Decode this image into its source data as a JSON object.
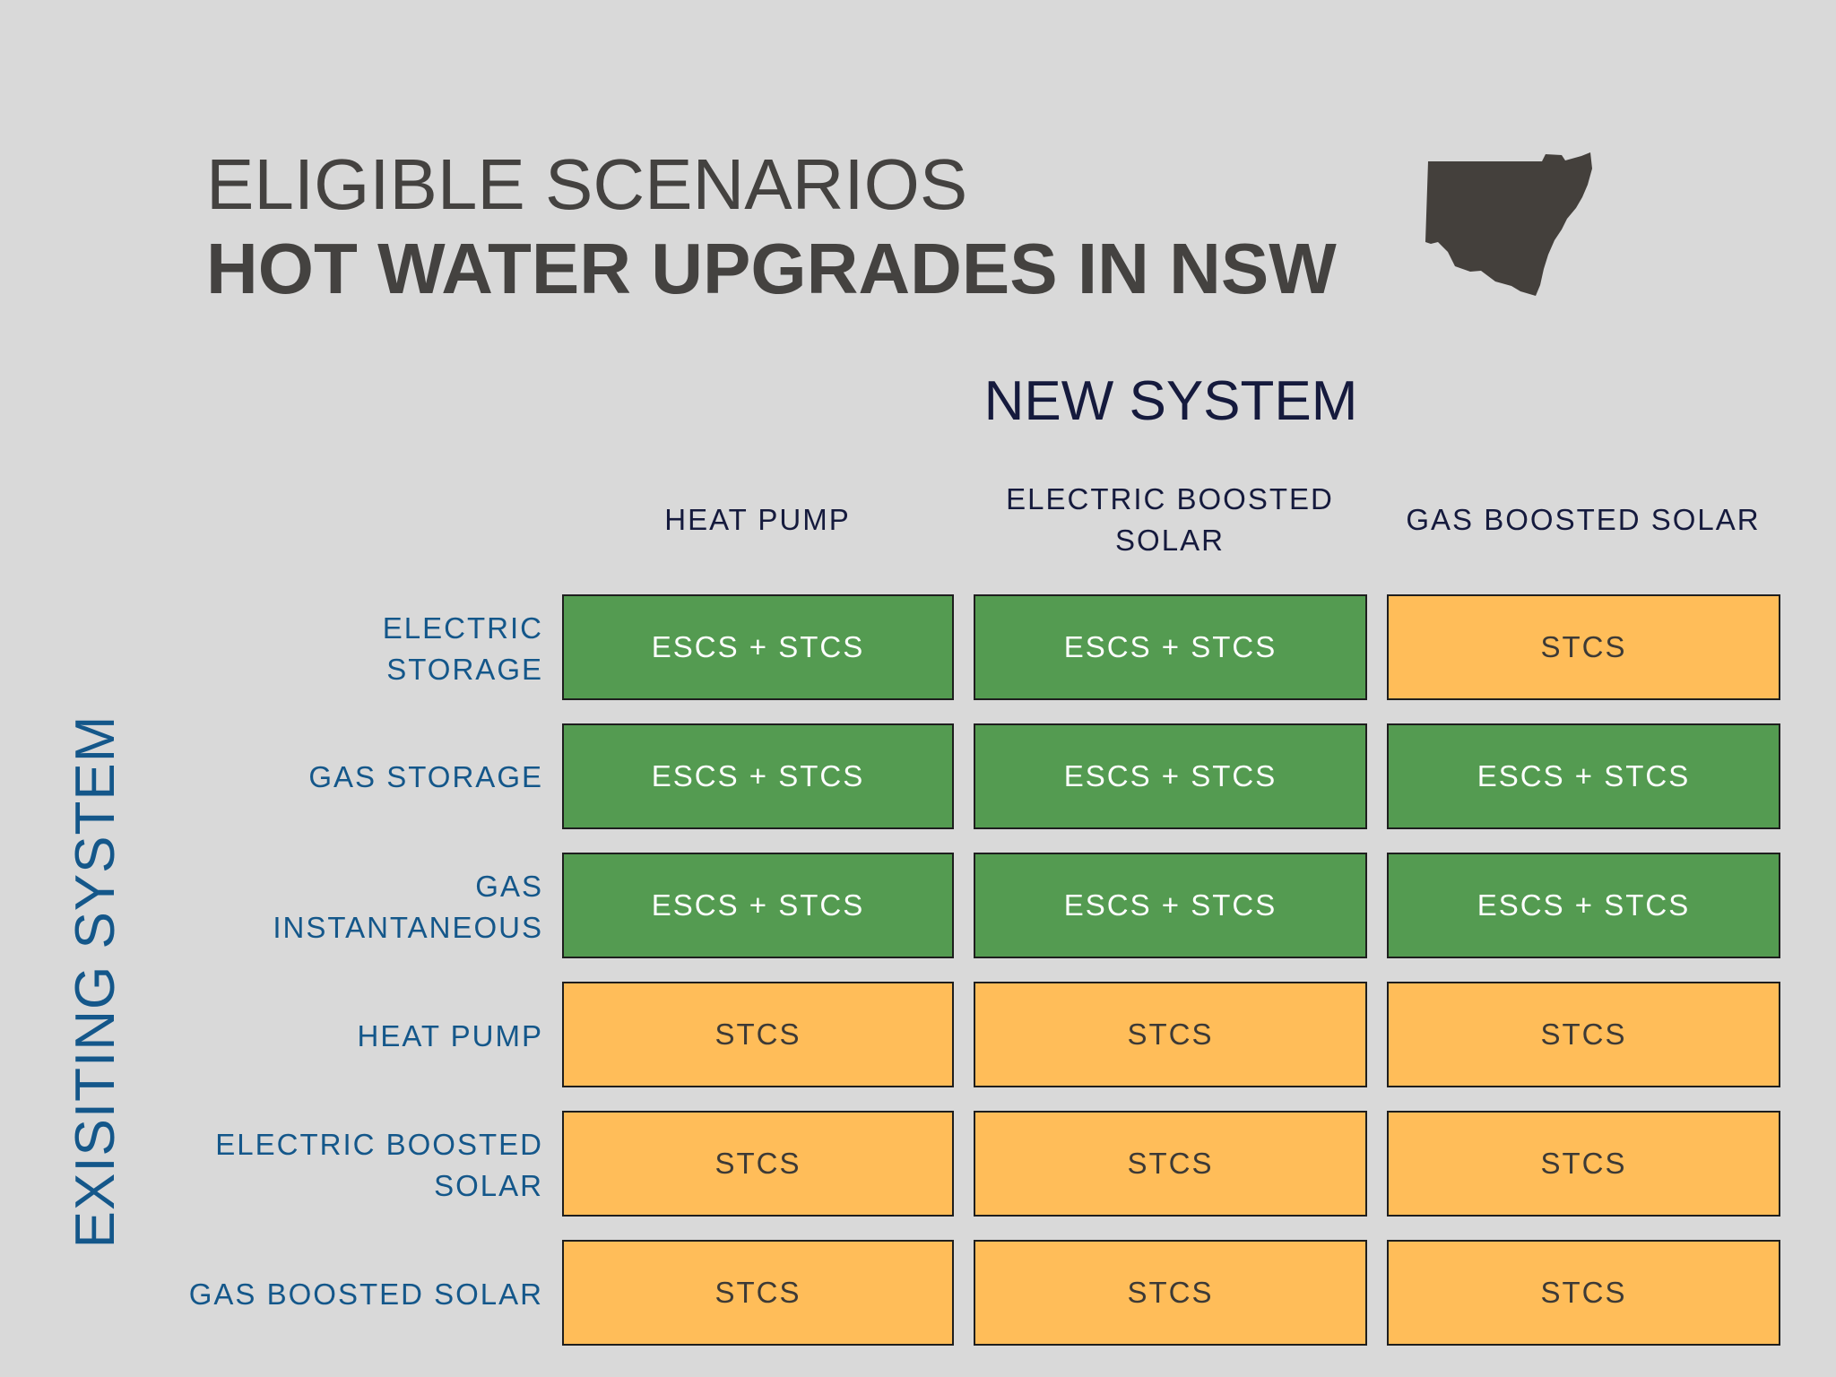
{
  "title": {
    "line1": "ELIGIBLE SCENARIOS",
    "line2": "HOT WATER UPGRADES IN NSW"
  },
  "map_icon": "nsw-state-map-icon",
  "colors": {
    "background": "#d9d9d9",
    "eligible_both": "#549b51",
    "eligible_stcs_only": "#ffbd59",
    "row_label": "#14578a",
    "column_label": "#151a3d"
  },
  "new_system_label": "NEW SYSTEM",
  "existing_system_label": "EXISITING SYSTEM",
  "columns": [
    {
      "lines": [
        "HEAT PUMP"
      ]
    },
    {
      "lines": [
        "ELECTRIC BOOSTED",
        "SOLAR"
      ]
    },
    {
      "lines": [
        "GAS BOOSTED SOLAR"
      ]
    }
  ],
  "rows": [
    {
      "lines": [
        "ELECTRIC",
        "STORAGE"
      ],
      "cells": [
        "ESCS + STCS",
        "ESCS + STCS",
        "STCS"
      ]
    },
    {
      "lines": [
        "GAS STORAGE"
      ],
      "cells": [
        "ESCS + STCS",
        "ESCS + STCS",
        "ESCS + STCS"
      ]
    },
    {
      "lines": [
        "GAS",
        "INSTANTANEOUS"
      ],
      "cells": [
        "ESCS + STCS",
        "ESCS + STCS",
        "ESCS + STCS"
      ]
    },
    {
      "lines": [
        "HEAT PUMP"
      ],
      "cells": [
        "STCS",
        "STCS",
        "STCS"
      ]
    },
    {
      "lines": [
        "ELECTRIC BOOSTED",
        "SOLAR"
      ],
      "cells": [
        "STCS",
        "STCS",
        "STCS"
      ]
    },
    {
      "lines": [
        "GAS BOOSTED SOLAR"
      ],
      "cells": [
        "STCS",
        "STCS",
        "STCS"
      ]
    }
  ]
}
